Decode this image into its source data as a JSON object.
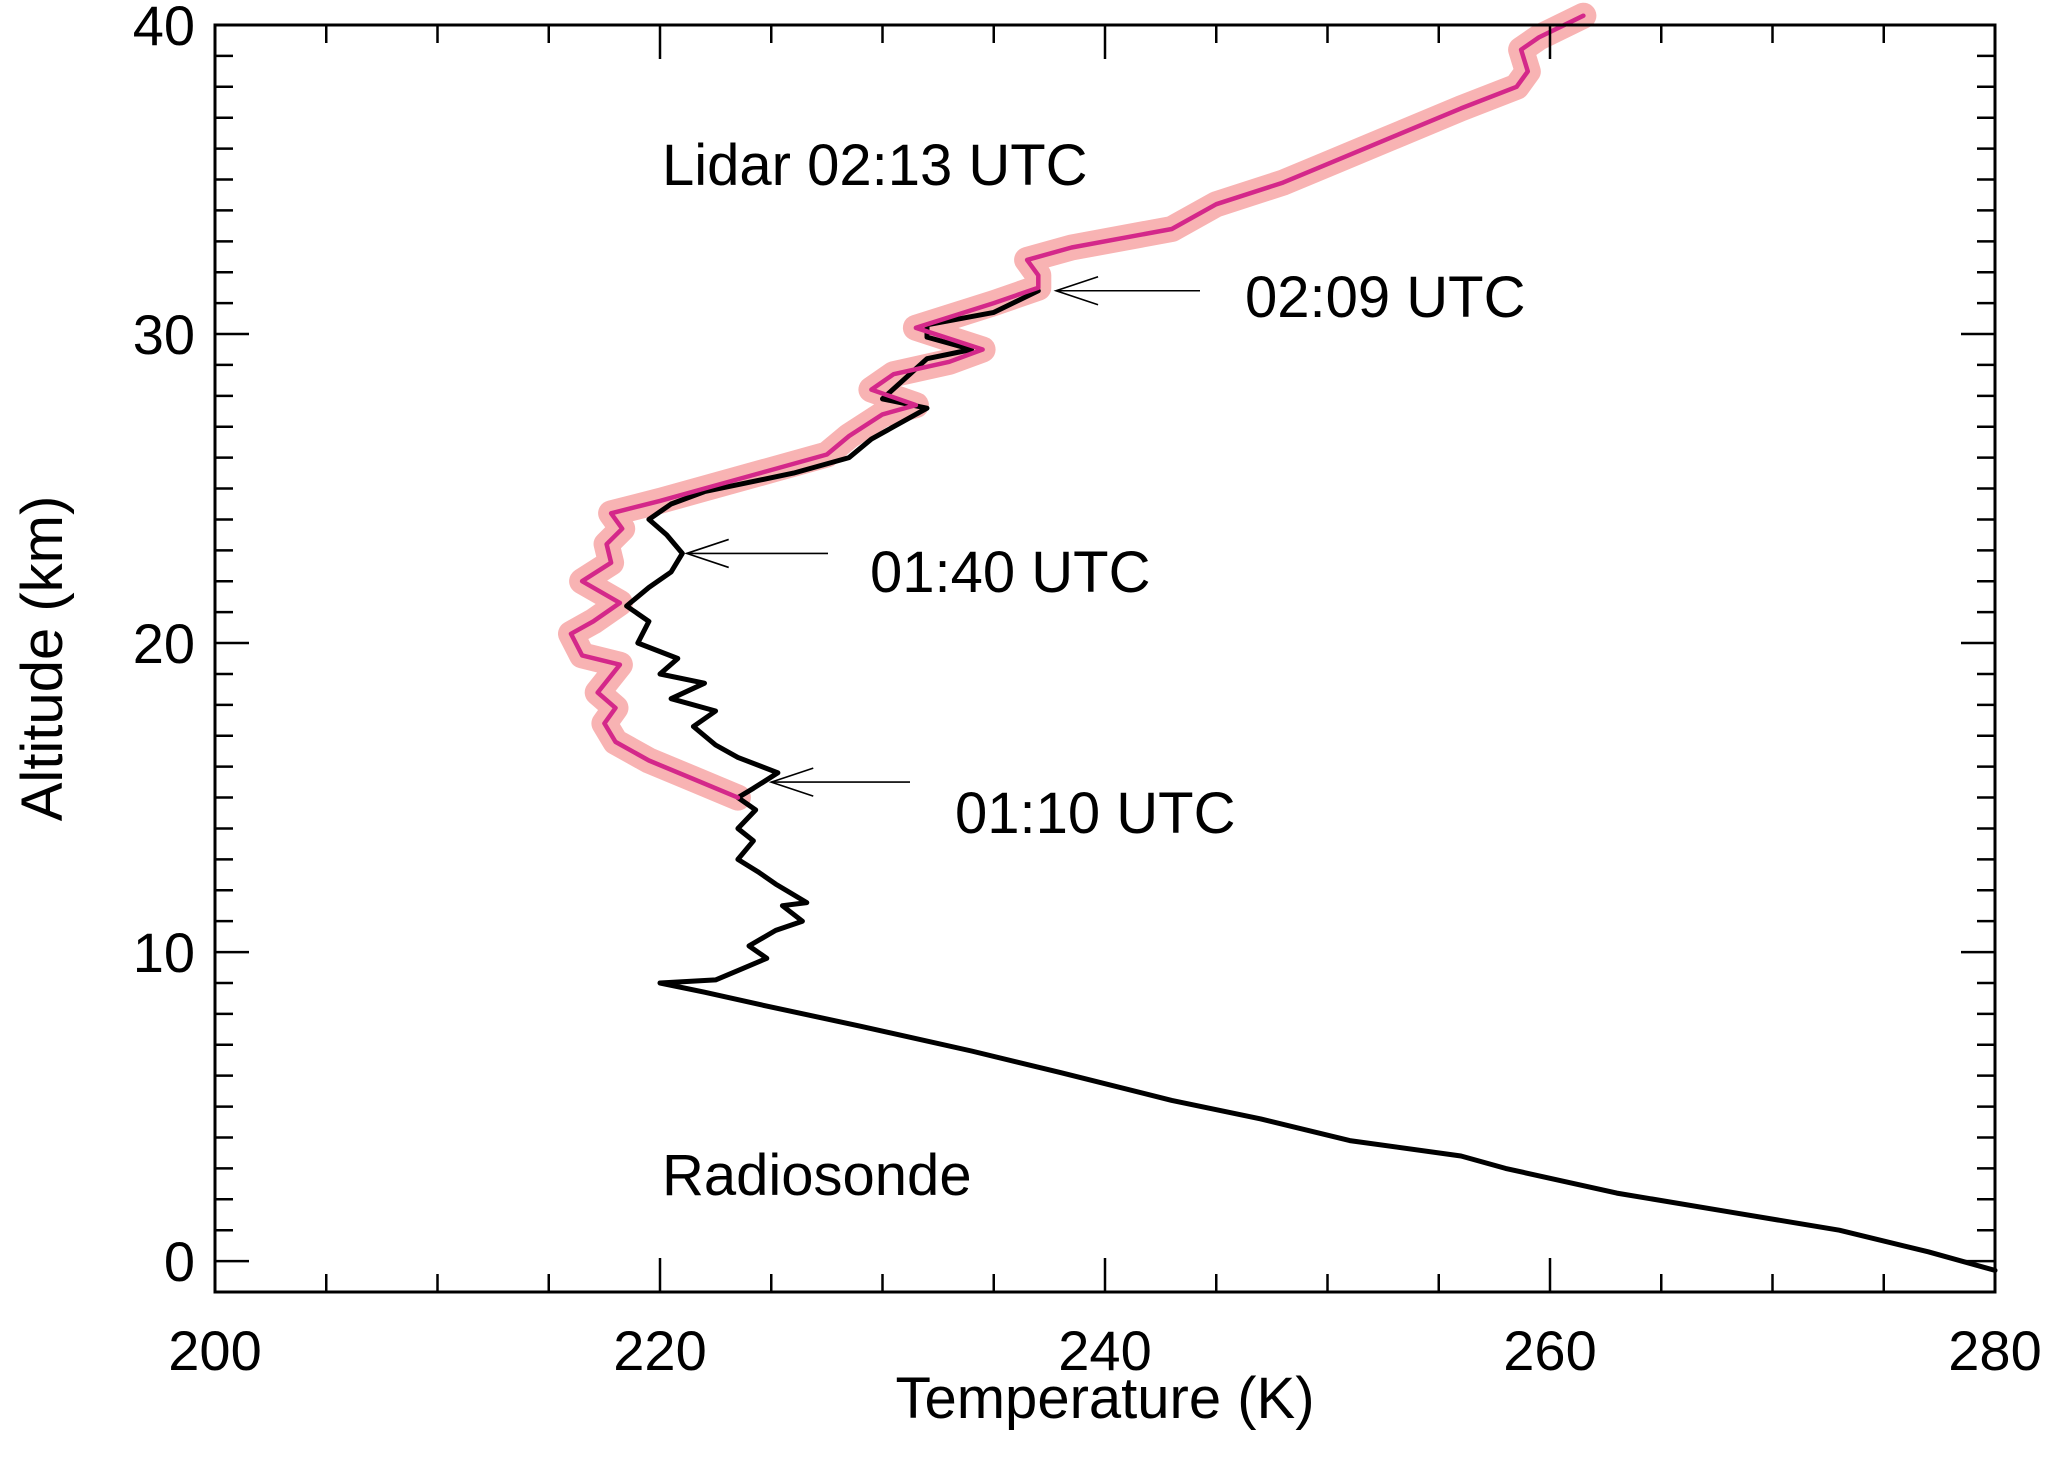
{
  "chart_data": {
    "type": "line",
    "title": "",
    "xlabel": "Temperature (K)",
    "ylabel": "Altitude (km)",
    "xlim": [
      200,
      280
    ],
    "ylim": [
      -1,
      40
    ],
    "x_major_ticks": [
      200,
      220,
      240,
      260,
      280
    ],
    "y_major_ticks": [
      0,
      10,
      20,
      30,
      40
    ],
    "x_minor_step": 5,
    "y_minor_step": 1,
    "grid": false,
    "colors": {
      "lidar": "#d4288a",
      "lidar_uncertainty": "#f8b3b3",
      "radiosonde": "#000000",
      "axes": "#000000"
    },
    "series": [
      {
        "name": "Radiosonde",
        "points": [
          [
            280,
            -0.3
          ],
          [
            277,
            0.3
          ],
          [
            273,
            1.0
          ],
          [
            268,
            1.6
          ],
          [
            263,
            2.2
          ],
          [
            258,
            3.0
          ],
          [
            256,
            3.4
          ],
          [
            251,
            3.9
          ],
          [
            247,
            4.6
          ],
          [
            243,
            5.2
          ],
          [
            238,
            6.1
          ],
          [
            234,
            6.8
          ],
          [
            229,
            7.6
          ],
          [
            224.5,
            8.3
          ],
          [
            222,
            8.7
          ],
          [
            220,
            9.0
          ],
          [
            222.5,
            9.1
          ],
          [
            223.5,
            9.4
          ],
          [
            224.8,
            9.8
          ],
          [
            224,
            10.2
          ],
          [
            225.2,
            10.7
          ],
          [
            226.4,
            11.0
          ],
          [
            225.5,
            11.5
          ],
          [
            226.6,
            11.6
          ],
          [
            225.2,
            12.2
          ],
          [
            224.4,
            12.6
          ],
          [
            223.5,
            13.0
          ],
          [
            224.2,
            13.6
          ],
          [
            223.5,
            14.0
          ],
          [
            224.3,
            14.6
          ],
          [
            223.5,
            15.0
          ],
          [
            224.2,
            15.3
          ],
          [
            225.3,
            15.8
          ],
          [
            223.5,
            16.3
          ],
          [
            222.5,
            16.7
          ],
          [
            221.5,
            17.3
          ],
          [
            222.5,
            17.8
          ],
          [
            220.5,
            18.2
          ],
          [
            222,
            18.7
          ],
          [
            220,
            19.0
          ],
          [
            220.8,
            19.5
          ],
          [
            219,
            20.0
          ],
          [
            219.5,
            20.7
          ],
          [
            218.5,
            21.2
          ],
          [
            219.5,
            21.8
          ],
          [
            220.5,
            22.3
          ],
          [
            221,
            22.9
          ],
          [
            220.3,
            23.5
          ],
          [
            219.5,
            24.0
          ],
          [
            220.5,
            24.5
          ],
          [
            222,
            24.9
          ],
          [
            226,
            25.5
          ],
          [
            228.5,
            26.0
          ],
          [
            229.5,
            26.6
          ],
          [
            230.5,
            27.0
          ],
          [
            232,
            27.6
          ],
          [
            230,
            27.9
          ],
          [
            232,
            29.2
          ],
          [
            234,
            29.5
          ],
          [
            232,
            29.9
          ],
          [
            232,
            30.3
          ],
          [
            235,
            30.7
          ],
          [
            237,
            31.4
          ]
        ]
      },
      {
        "name": "Lidar 02:13 UTC",
        "points": [
          [
            223.5,
            15.0
          ],
          [
            221.5,
            15.6
          ],
          [
            219.5,
            16.2
          ],
          [
            218,
            16.8
          ],
          [
            217.5,
            17.4
          ],
          [
            218,
            17.9
          ],
          [
            217.2,
            18.4
          ],
          [
            218.2,
            19.3
          ],
          [
            216.5,
            19.6
          ],
          [
            216,
            20.3
          ],
          [
            217,
            20.7
          ],
          [
            218.2,
            21.3
          ],
          [
            216.5,
            22.0
          ],
          [
            217.8,
            22.6
          ],
          [
            217.6,
            23.2
          ],
          [
            218.3,
            23.7
          ],
          [
            217.8,
            24.2
          ],
          [
            220,
            24.6
          ],
          [
            222,
            25.0
          ],
          [
            225,
            25.6
          ],
          [
            227.5,
            26.1
          ],
          [
            228.5,
            26.7
          ],
          [
            230,
            27.4
          ],
          [
            231.5,
            27.7
          ],
          [
            229.5,
            28.2
          ],
          [
            230.5,
            28.7
          ],
          [
            233,
            29.1
          ],
          [
            234.5,
            29.5
          ],
          [
            231.5,
            30.2
          ],
          [
            235,
            31.0
          ],
          [
            237,
            31.5
          ],
          [
            237,
            31.9
          ],
          [
            236.5,
            32.4
          ],
          [
            238.5,
            32.8
          ],
          [
            243,
            33.4
          ],
          [
            245,
            34.2
          ],
          [
            248,
            34.9
          ],
          [
            250,
            35.5
          ],
          [
            253,
            36.4
          ],
          [
            256,
            37.3
          ],
          [
            258.5,
            38.0
          ],
          [
            259,
            38.5
          ],
          [
            258.7,
            39.2
          ],
          [
            259.5,
            39.6
          ],
          [
            261.5,
            40.3
          ]
        ]
      }
    ],
    "annotations": [
      {
        "text": "Lidar 02:13 UTC"
      },
      {
        "text": "02:09 UTC",
        "arrow_to": [
          237.8,
          31.4
        ]
      },
      {
        "text": "01:40 UTC",
        "arrow_to": [
          221.2,
          22.9
        ]
      },
      {
        "text": "01:10 UTC",
        "arrow_to": [
          225,
          15.5
        ]
      },
      {
        "text": "Radiosonde"
      }
    ]
  }
}
